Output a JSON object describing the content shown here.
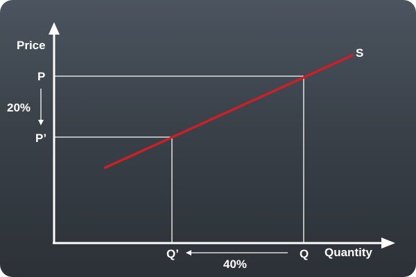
{
  "diagram": {
    "y_axis_label": "Price",
    "x_axis_label": "Quantity",
    "price_original_label": "P",
    "price_new_label": "P’",
    "quantity_original_label": "Q",
    "quantity_new_label": "Q’",
    "price_change_label": "20%",
    "quantity_change_label": "40%",
    "curve_label": "S",
    "curve_color": "#cc2027",
    "axis_color": "#ffffff",
    "background_color": "#3a4149"
  }
}
